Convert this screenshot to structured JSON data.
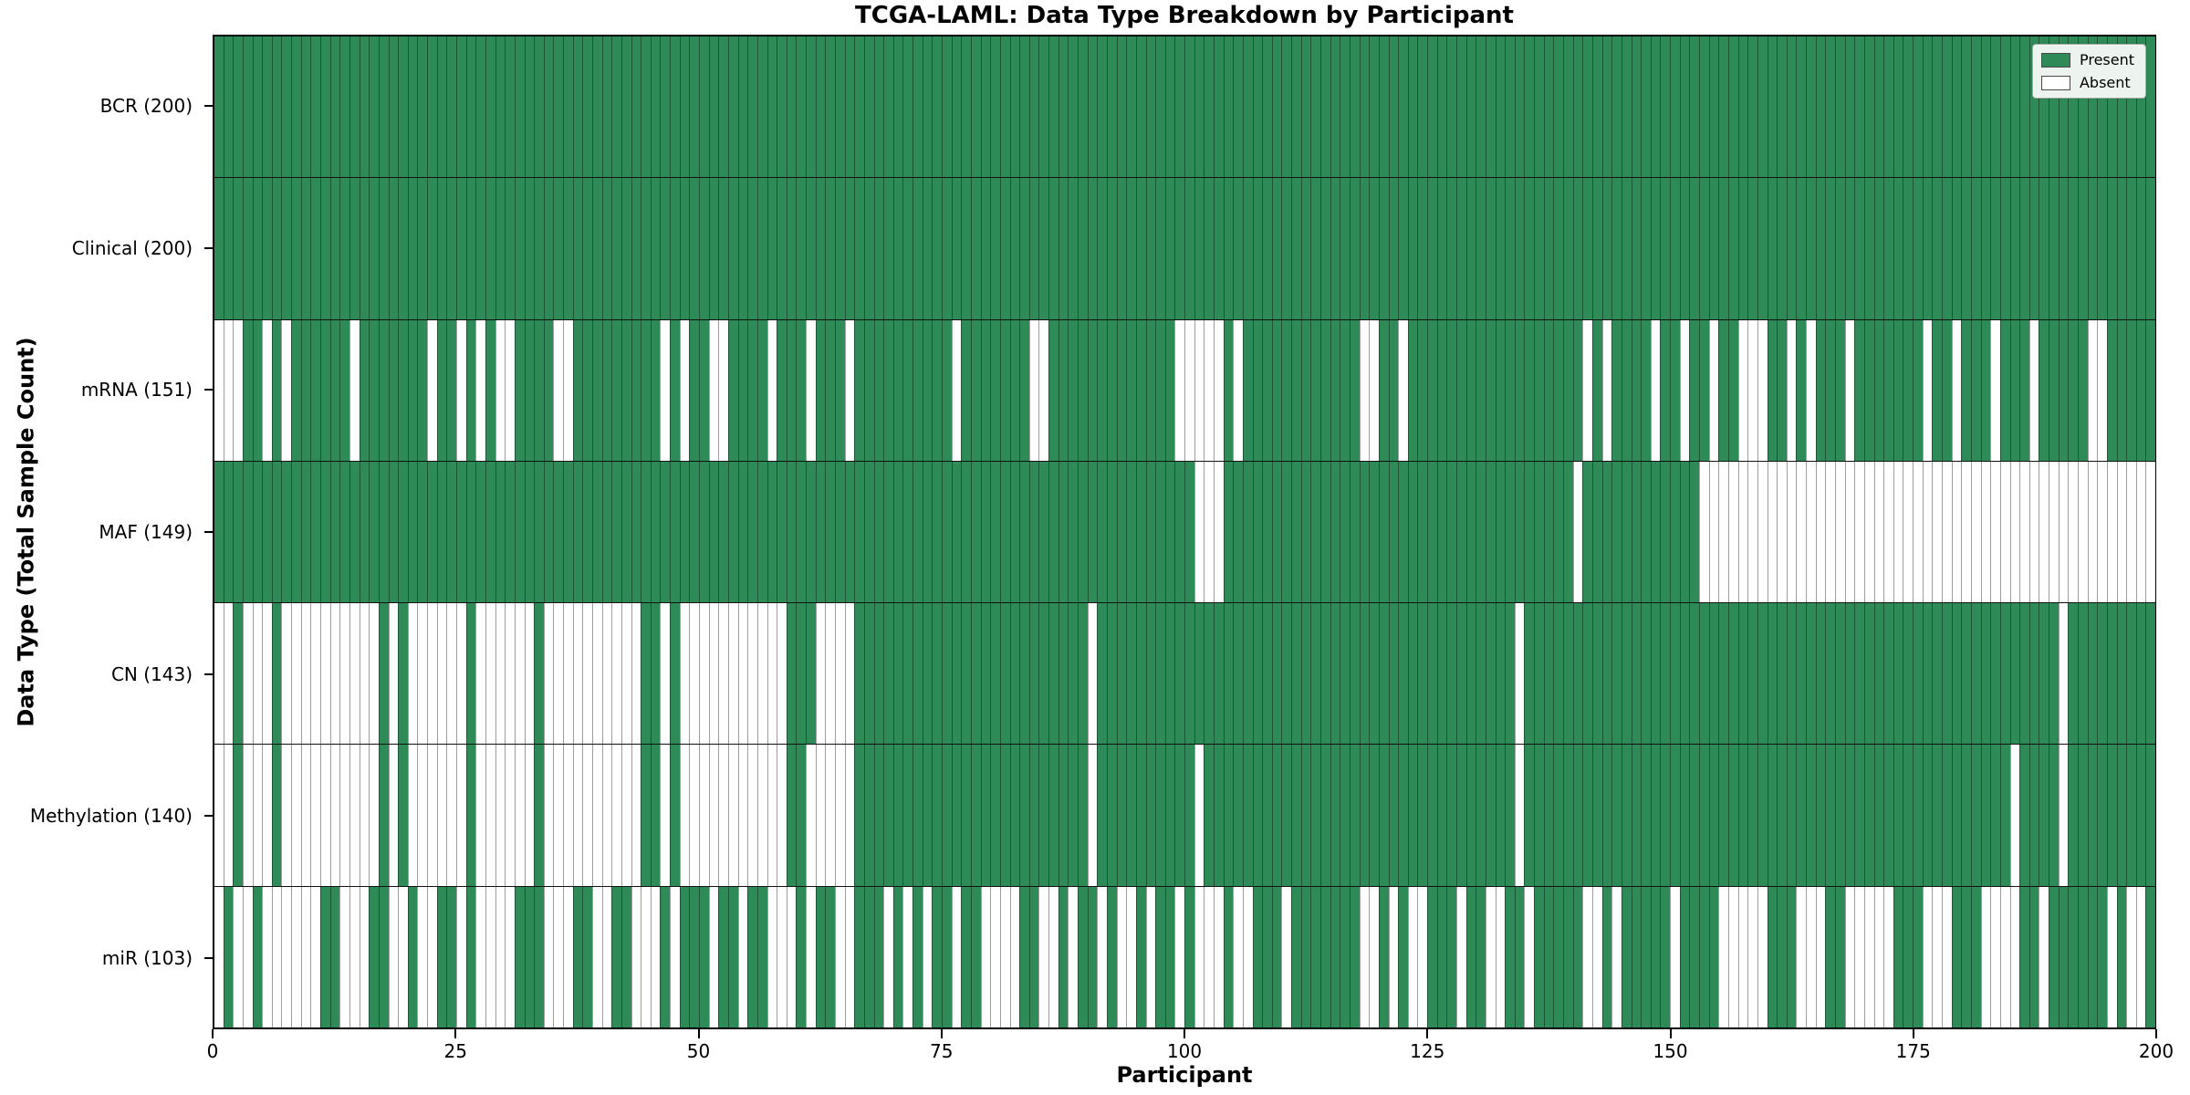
{
  "title": "TCGA-LAML: Data Type Breakdown by Participant",
  "xlabel": "Participant",
  "ylabel": "Data Type (Total Sample Count)",
  "legend": {
    "present_label": "Present",
    "absent_label": "Absent"
  },
  "colors": {
    "present": "#2e8b57",
    "absent": "#ffffff",
    "cell_border": "rgba(0,0,0,0.38)",
    "row_divider": "#111111"
  },
  "chart_data": {
    "type": "heatmap",
    "title": "TCGA-LAML: Data Type Breakdown by Participant",
    "xlabel": "Participant",
    "ylabel": "Data Type (Total Sample Count)",
    "n_participants": 200,
    "x_axis": {
      "range": [
        0,
        200
      ],
      "ticks": [
        0,
        25,
        50,
        75,
        100,
        125,
        150,
        175,
        200
      ]
    },
    "legend_position": "upper right",
    "cell_states": {
      "present": "Present",
      "absent": "Absent"
    },
    "rows": [
      {
        "label": "BCR (200)",
        "data_type": "BCR",
        "present_count": 200,
        "absent_participants": []
      },
      {
        "label": "Clinical (200)",
        "data_type": "Clinical",
        "present_count": 200,
        "absent_participants": []
      },
      {
        "label": "mRNA (151)",
        "data_type": "mRNA",
        "present_count": 151,
        "absent_participants": [
          0,
          1,
          2,
          5,
          7,
          14,
          22,
          25,
          27,
          29,
          30,
          35,
          36,
          46,
          48,
          51,
          52,
          57,
          61,
          65,
          76,
          84,
          85,
          99,
          100,
          101,
          102,
          103,
          105,
          118,
          119,
          122,
          141,
          143,
          148,
          151,
          154,
          157,
          158,
          159,
          162,
          164,
          168,
          176,
          179,
          183,
          187,
          193,
          194
        ]
      },
      {
        "label": "MAF (149)",
        "data_type": "MAF",
        "present_count": 149,
        "absent_participants": [
          101,
          102,
          103,
          140,
          153,
          154,
          155,
          156,
          157,
          158,
          159,
          160,
          161,
          162,
          163,
          164,
          165,
          166,
          167,
          168,
          169,
          170,
          171,
          172,
          173,
          174,
          175,
          176,
          177,
          178,
          179,
          180,
          181,
          182,
          183,
          184,
          185,
          186,
          187,
          188,
          189,
          190,
          191,
          192,
          193,
          194,
          195,
          196,
          197,
          198,
          199
        ]
      },
      {
        "label": "CN (143)",
        "data_type": "CN",
        "present_count": 143,
        "absent_participants": [
          0,
          1,
          3,
          4,
          5,
          7,
          8,
          9,
          10,
          11,
          12,
          13,
          14,
          15,
          16,
          18,
          20,
          21,
          22,
          23,
          24,
          25,
          27,
          28,
          29,
          30,
          31,
          32,
          34,
          35,
          36,
          37,
          38,
          39,
          40,
          41,
          42,
          43,
          46,
          48,
          49,
          50,
          51,
          52,
          53,
          54,
          55,
          56,
          57,
          58,
          62,
          63,
          64,
          65,
          90,
          134,
          190
        ]
      },
      {
        "label": "Methylation (140)",
        "data_type": "Methylation",
        "present_count": 140,
        "absent_participants": [
          0,
          1,
          3,
          4,
          5,
          7,
          8,
          9,
          10,
          11,
          12,
          13,
          14,
          15,
          16,
          18,
          20,
          21,
          22,
          23,
          24,
          25,
          27,
          28,
          29,
          30,
          31,
          32,
          34,
          35,
          36,
          37,
          38,
          39,
          40,
          41,
          42,
          43,
          46,
          48,
          49,
          50,
          51,
          52,
          53,
          54,
          55,
          56,
          57,
          58,
          61,
          62,
          63,
          64,
          65,
          90,
          101,
          134,
          185,
          190
        ]
      },
      {
        "label": "miR (103)",
        "data_type": "miR",
        "present_count": 103,
        "absent_participants": [
          0,
          2,
          3,
          5,
          6,
          7,
          8,
          9,
          10,
          13,
          14,
          15,
          18,
          19,
          21,
          22,
          25,
          27,
          28,
          29,
          30,
          34,
          35,
          36,
          39,
          40,
          43,
          44,
          45,
          47,
          51,
          54,
          57,
          58,
          59,
          61,
          64,
          65,
          69,
          71,
          73,
          76,
          79,
          80,
          81,
          82,
          85,
          86,
          88,
          91,
          93,
          94,
          96,
          99,
          101,
          102,
          103,
          105,
          106,
          110,
          118,
          119,
          121,
          123,
          124,
          128,
          131,
          132,
          135,
          141,
          142,
          144,
          150,
          155,
          156,
          157,
          158,
          159,
          163,
          164,
          165,
          168,
          169,
          170,
          171,
          172,
          176,
          177,
          178,
          182,
          183,
          184,
          185,
          188,
          195,
          197,
          198
        ]
      }
    ]
  }
}
